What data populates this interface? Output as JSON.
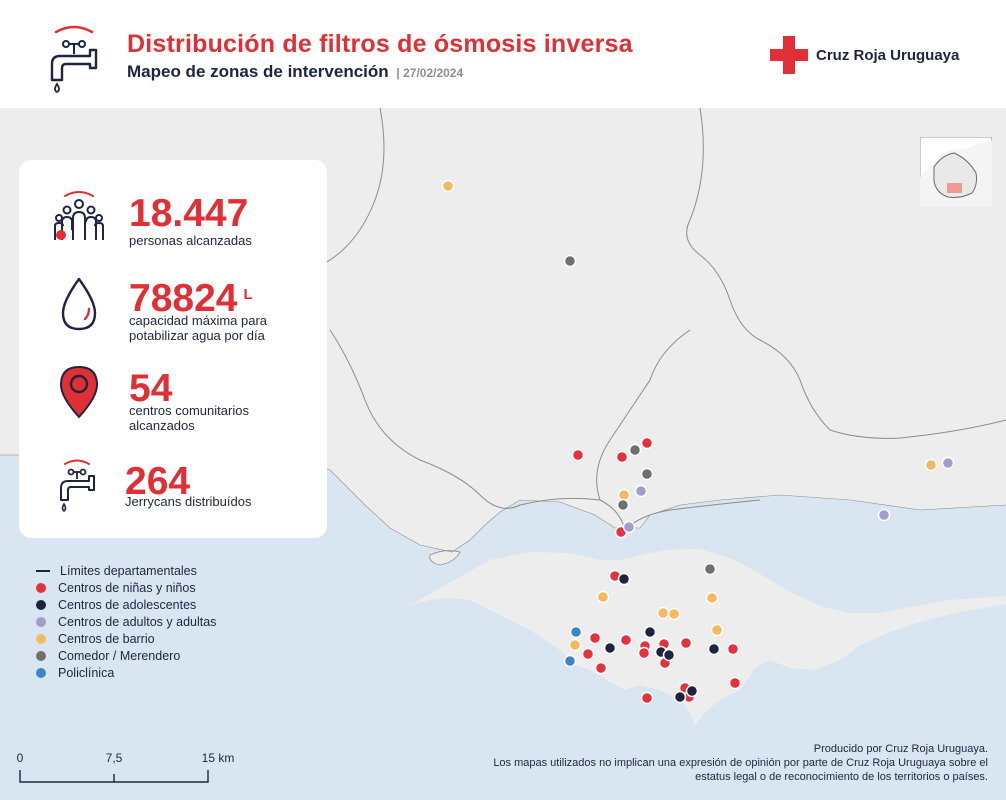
{
  "header": {
    "title": "Distribución de filtros de ósmosis inversa",
    "subtitle": "Mapeo de zonas de intervención",
    "date": "| 27/02/2024",
    "header_icon": "faucet-icon",
    "org_logo_text": "Cruz Roja Uruguaya",
    "logo_icon": "red-cross-icon"
  },
  "colors": {
    "accent_red": "#e03035",
    "navy": "#1f2540",
    "land": "#ededed",
    "water": "#d9e6f1",
    "border_line": "#8c8c8c"
  },
  "stats": [
    {
      "value": "18.447",
      "unit": "",
      "label": "personas alcanzadas",
      "icon": "people-icon"
    },
    {
      "value": "78824",
      "unit": "L",
      "label": "capacidad máxima para potabilizar agua por día",
      "icon": "water-drop-icon"
    },
    {
      "value": "54",
      "unit": "",
      "label": "centros comunitarios alcanzados",
      "icon": "map-pin-icon"
    },
    {
      "value": "264",
      "unit": "",
      "label": "Jerrycans distribuídos",
      "icon": "faucet-icon"
    }
  ],
  "legend": {
    "boundary_label": "Límites departamentales",
    "categories": [
      {
        "label": "Centros de niñas y niños",
        "color": "#e5313b"
      },
      {
        "label": "Centros de adolescentes",
        "color": "#1d2442"
      },
      {
        "label": "Centros de adultos y adultas",
        "color": "#a29dcc"
      },
      {
        "label": "Centros de barrio",
        "color": "#f6b960"
      },
      {
        "label": "Comedor / Merendero",
        "color": "#6f6f6f"
      },
      {
        "label": "Policlínica",
        "color": "#3d85c6"
      }
    ]
  },
  "map_points_by_category": {
    "Centros de niñas y niños": 25,
    "Centros de adolescentes": 9,
    "Centros de adultos y adultas": 5,
    "Centros de barrio": 10,
    "Comedor / Merendero": 5,
    "Policlínica": 2
  },
  "scale": {
    "ticks": [
      "0",
      "7,5",
      "15 km"
    ]
  },
  "credits": {
    "line1": "Producido por Cruz Roja Uruguaya.",
    "line2": "Los mapas utilizados no implican una expresión de opinión por parte de Cruz Roja Uruguaya sobre el estatus legal o de reconocimiento de los territorios o países."
  }
}
